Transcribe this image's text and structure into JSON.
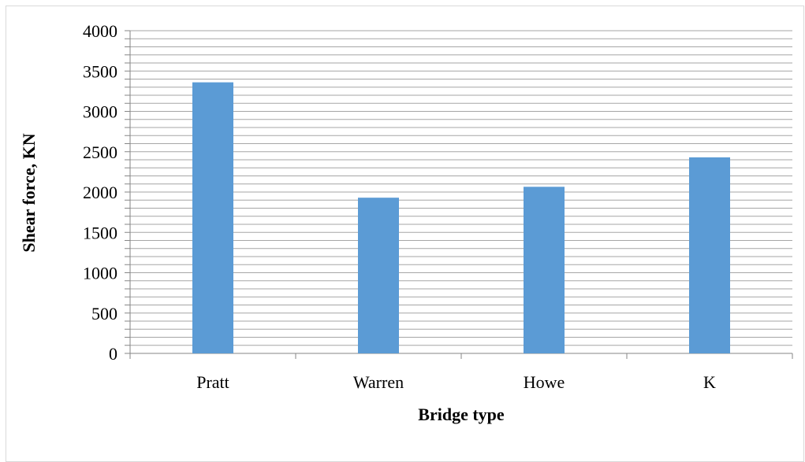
{
  "chart_data": {
    "type": "bar",
    "categories": [
      "Pratt",
      "Warren",
      "Howe",
      "K"
    ],
    "series": [
      {
        "values": [
          3360,
          1930,
          2065,
          2430
        ]
      }
    ],
    "xlabel": "Bridge type",
    "ylabel": "Shear force, KN",
    "ylim": [
      0,
      4000
    ],
    "yticks": [
      0,
      500,
      1000,
      1500,
      2000,
      2500,
      3000,
      3500,
      4000
    ],
    "minor_gridline_step": 100,
    "grid": true,
    "legend": "none",
    "bar_color": "#5b9bd5",
    "gridline_color": "#a6a6a6"
  }
}
